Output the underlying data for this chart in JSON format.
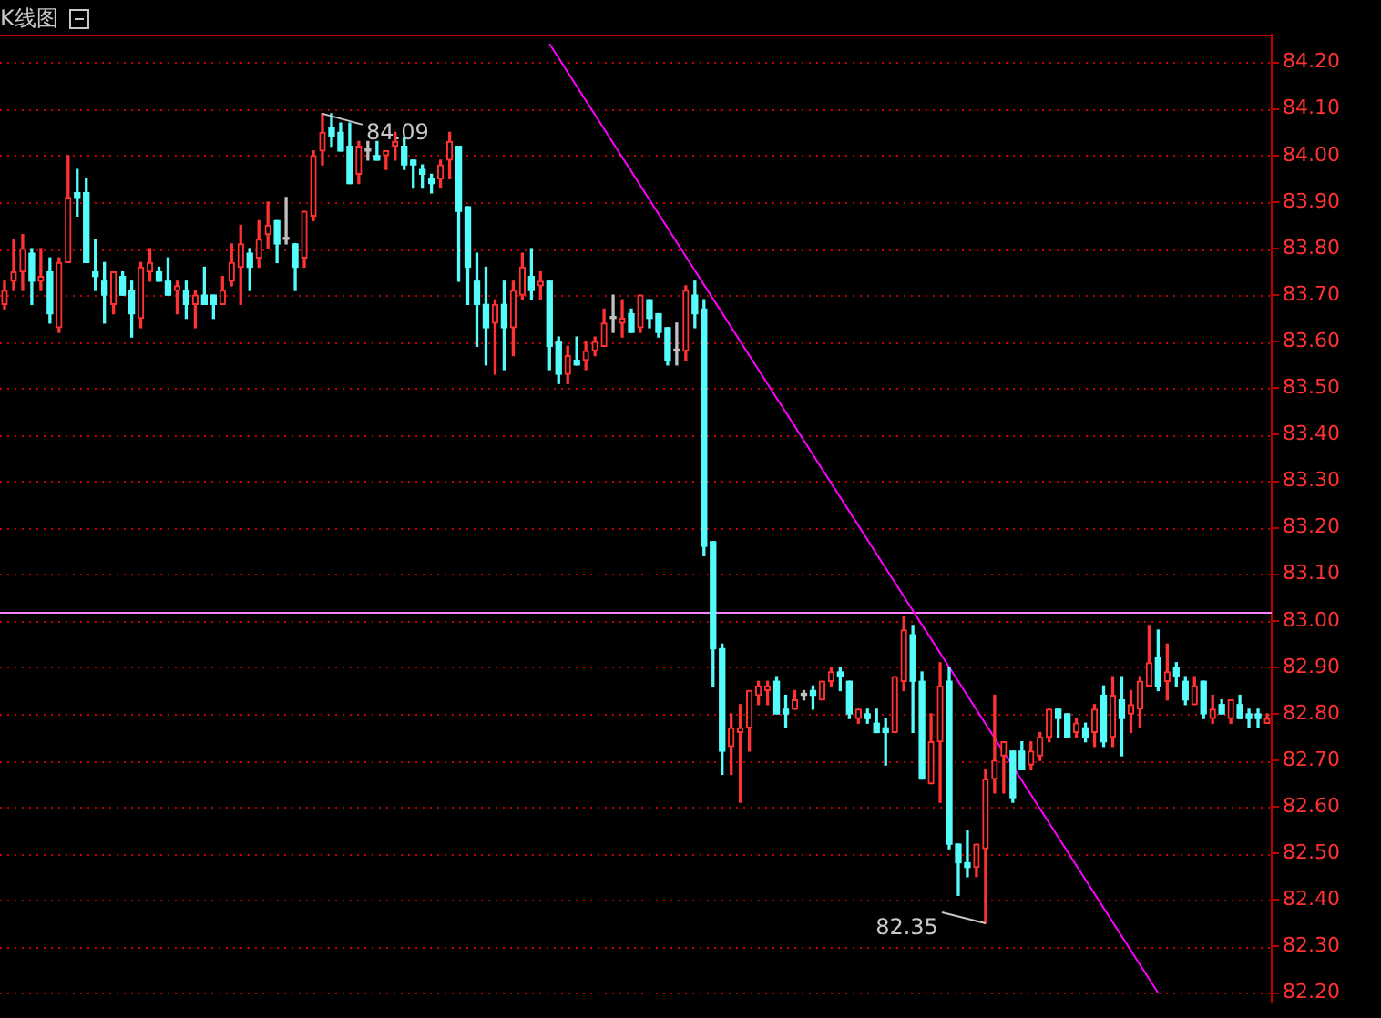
{
  "chart_data": {
    "type": "candlestick",
    "title": "K线图",
    "categories": [
      null,
      null,
      null,
      null,
      null,
      null,
      null,
      null,
      null,
      null,
      null,
      null,
      null,
      null,
      null,
      null,
      null,
      null,
      null,
      null,
      null,
      null,
      null,
      null,
      null,
      null,
      null,
      null,
      null,
      null,
      null,
      null,
      null,
      null,
      null,
      null,
      null,
      null,
      null,
      null,
      null,
      null,
      null,
      null,
      null,
      null,
      null,
      null,
      null,
      null,
      null,
      null,
      null,
      null,
      null,
      null,
      null,
      null,
      null,
      null,
      null,
      null,
      null,
      null,
      null,
      null,
      null,
      null,
      null,
      null,
      null,
      null,
      null,
      null,
      null,
      null,
      null,
      null,
      null,
      null,
      null,
      null,
      null,
      null,
      null,
      null,
      null,
      null,
      null,
      null,
      null,
      null,
      null,
      null,
      null,
      null,
      null,
      null,
      null,
      null,
      null,
      null,
      null,
      null,
      null,
      null,
      null,
      null,
      null,
      null,
      null,
      null,
      null,
      null,
      null,
      null,
      null,
      null,
      null,
      null,
      null,
      null,
      null,
      null,
      null,
      null,
      null,
      null,
      null,
      null,
      null,
      null,
      null,
      null,
      null,
      null,
      null,
      null,
      null,
      null
    ],
    "ohlc": [
      [
        83.68,
        83.73,
        83.67,
        83.71
      ],
      [
        83.73,
        83.82,
        83.71,
        83.75
      ],
      [
        83.75,
        83.83,
        83.71,
        83.8
      ],
      [
        83.79,
        83.8,
        83.68,
        83.73
      ],
      [
        83.73,
        83.8,
        83.71,
        83.74
      ],
      [
        83.75,
        83.78,
        83.64,
        83.66
      ],
      [
        83.63,
        83.78,
        83.62,
        83.77
      ],
      [
        83.77,
        84.0,
        83.77,
        83.91
      ],
      [
        83.92,
        83.97,
        83.87,
        83.91
      ],
      [
        83.92,
        83.95,
        83.77,
        83.77
      ],
      [
        83.75,
        83.82,
        83.71,
        83.74
      ],
      [
        83.73,
        83.77,
        83.64,
        83.7
      ],
      [
        83.68,
        83.75,
        83.66,
        83.75
      ],
      [
        83.74,
        83.75,
        83.7,
        83.7
      ],
      [
        83.71,
        83.73,
        83.61,
        83.66
      ],
      [
        83.65,
        83.77,
        83.63,
        83.76
      ],
      [
        83.75,
        83.8,
        83.73,
        83.77
      ],
      [
        83.75,
        83.76,
        83.73,
        83.73
      ],
      [
        83.73,
        83.78,
        83.7,
        83.7
      ],
      [
        83.71,
        83.73,
        83.66,
        83.72
      ],
      [
        83.71,
        83.73,
        83.65,
        83.68
      ],
      [
        83.68,
        83.71,
        83.63,
        83.7
      ],
      [
        83.7,
        83.76,
        83.68,
        83.68
      ],
      [
        83.7,
        83.7,
        83.65,
        83.68
      ],
      [
        83.68,
        83.74,
        83.68,
        83.71
      ],
      [
        83.73,
        83.81,
        83.72,
        83.77
      ],
      [
        83.76,
        83.85,
        83.68,
        83.81
      ],
      [
        83.79,
        83.8,
        83.71,
        83.76
      ],
      [
        83.78,
        83.86,
        83.76,
        83.82
      ],
      [
        83.83,
        83.9,
        83.8,
        83.85
      ],
      [
        83.86,
        83.86,
        83.77,
        83.81
      ],
      [
        83.82,
        83.91,
        83.81,
        83.82
      ],
      [
        83.81,
        83.81,
        83.71,
        83.76
      ],
      [
        83.78,
        83.88,
        83.76,
        83.88
      ],
      [
        83.87,
        84.01,
        83.86,
        84.0
      ],
      [
        84.01,
        84.09,
        83.98,
        84.05
      ],
      [
        84.06,
        84.09,
        84.02,
        84.04
      ],
      [
        84.05,
        84.07,
        84.01,
        84.01
      ],
      [
        84.02,
        84.07,
        83.94,
        83.94
      ],
      [
        83.96,
        84.03,
        83.94,
        84.02
      ],
      [
        84.01,
        84.03,
        83.99,
        84.01
      ],
      [
        84.0,
        84.03,
        83.99,
        83.99
      ],
      [
        84.0,
        84.01,
        83.97,
        84.01
      ],
      [
        84.02,
        84.05,
        83.99,
        84.03
      ],
      [
        84.02,
        84.04,
        83.97,
        83.98
      ],
      [
        83.99,
        83.99,
        83.93,
        83.98
      ],
      [
        83.97,
        83.98,
        83.93,
        83.96
      ],
      [
        83.95,
        83.96,
        83.92,
        83.94
      ],
      [
        83.95,
        83.99,
        83.93,
        83.98
      ],
      [
        83.99,
        84.05,
        83.95,
        84.03
      ],
      [
        84.02,
        84.02,
        83.73,
        83.88
      ],
      [
        83.89,
        83.89,
        83.68,
        83.76
      ],
      [
        83.73,
        83.79,
        83.59,
        83.68
      ],
      [
        83.68,
        83.76,
        83.55,
        83.63
      ],
      [
        83.64,
        83.69,
        83.53,
        83.68
      ],
      [
        83.68,
        83.73,
        83.54,
        83.63
      ],
      [
        83.63,
        83.73,
        83.57,
        83.71
      ],
      [
        83.7,
        83.79,
        83.69,
        83.76
      ],
      [
        83.74,
        83.8,
        83.69,
        83.71
      ],
      [
        83.72,
        83.75,
        83.69,
        83.73
      ],
      [
        83.73,
        83.73,
        83.54,
        83.59
      ],
      [
        83.6,
        83.61,
        83.51,
        83.53
      ],
      [
        83.53,
        83.59,
        83.51,
        83.57
      ],
      [
        83.56,
        83.61,
        83.55,
        83.55
      ],
      [
        83.56,
        83.6,
        83.54,
        83.58
      ],
      [
        83.58,
        83.61,
        83.57,
        83.6
      ],
      [
        83.59,
        83.67,
        83.59,
        83.64
      ],
      [
        83.65,
        83.7,
        83.62,
        83.65
      ],
      [
        83.64,
        83.69,
        83.61,
        83.65
      ],
      [
        83.66,
        83.67,
        83.62,
        83.62
      ],
      [
        83.63,
        83.7,
        83.62,
        83.7
      ],
      [
        83.69,
        83.69,
        83.63,
        83.65
      ],
      [
        83.66,
        83.66,
        83.61,
        83.62
      ],
      [
        83.63,
        83.63,
        83.55,
        83.56
      ],
      [
        83.58,
        83.64,
        83.55,
        83.58
      ],
      [
        83.58,
        83.72,
        83.56,
        83.71
      ],
      [
        83.7,
        83.73,
        83.63,
        83.66
      ],
      [
        83.67,
        83.69,
        83.14,
        83.16
      ],
      [
        83.17,
        83.17,
        82.86,
        82.94
      ],
      [
        82.94,
        82.95,
        82.67,
        82.72
      ],
      [
        82.73,
        82.8,
        82.67,
        82.77
      ],
      [
        82.76,
        82.82,
        82.61,
        82.77
      ],
      [
        82.77,
        82.85,
        82.72,
        82.85
      ],
      [
        82.84,
        82.87,
        82.82,
        82.86
      ],
      [
        82.85,
        82.87,
        82.82,
        82.86
      ],
      [
        82.87,
        82.88,
        82.8,
        82.8
      ],
      [
        82.81,
        82.84,
        82.77,
        82.8
      ],
      [
        82.81,
        82.85,
        82.81,
        82.83
      ],
      [
        82.84,
        82.85,
        82.83,
        82.84
      ],
      [
        82.85,
        82.86,
        82.81,
        82.84
      ],
      [
        82.83,
        82.87,
        82.83,
        82.87
      ],
      [
        82.87,
        82.9,
        82.86,
        82.89
      ],
      [
        82.89,
        82.9,
        82.85,
        82.88
      ],
      [
        82.87,
        82.87,
        82.79,
        82.8
      ],
      [
        82.79,
        82.81,
        82.78,
        82.81
      ],
      [
        82.8,
        82.81,
        82.78,
        82.79
      ],
      [
        82.78,
        82.81,
        82.76,
        82.76
      ],
      [
        82.77,
        82.79,
        82.69,
        82.76
      ],
      [
        82.76,
        82.88,
        82.76,
        82.88
      ],
      [
        82.87,
        83.01,
        82.85,
        82.98
      ],
      [
        82.97,
        82.99,
        82.76,
        82.87
      ],
      [
        82.87,
        82.89,
        82.66,
        82.66
      ],
      [
        82.65,
        82.8,
        82.65,
        82.74
      ],
      [
        82.74,
        82.91,
        82.61,
        82.86
      ],
      [
        82.87,
        82.9,
        82.51,
        82.52
      ],
      [
        82.52,
        82.52,
        82.41,
        82.48
      ],
      [
        82.48,
        82.55,
        82.45,
        82.47
      ],
      [
        82.47,
        82.52,
        82.45,
        82.52
      ],
      [
        82.51,
        82.68,
        82.35,
        82.66
      ],
      [
        82.66,
        82.84,
        82.63,
        82.7
      ],
      [
        82.71,
        82.74,
        82.63,
        82.74
      ],
      [
        82.72,
        82.72,
        82.61,
        82.62
      ],
      [
        82.72,
        82.74,
        82.68,
        82.68
      ],
      [
        82.69,
        82.74,
        82.68,
        82.72
      ],
      [
        82.71,
        82.76,
        82.7,
        82.75
      ],
      [
        82.75,
        82.81,
        82.74,
        82.81
      ],
      [
        82.81,
        82.81,
        82.75,
        82.79
      ],
      [
        82.8,
        82.8,
        82.75,
        82.75
      ],
      [
        82.76,
        82.79,
        82.75,
        82.78
      ],
      [
        82.77,
        82.78,
        82.74,
        82.75
      ],
      [
        82.76,
        82.82,
        82.73,
        82.81
      ],
      [
        82.84,
        82.86,
        82.73,
        82.74
      ],
      [
        82.75,
        82.88,
        82.73,
        82.84
      ],
      [
        82.83,
        82.88,
        82.71,
        82.79
      ],
      [
        82.8,
        82.85,
        82.76,
        82.82
      ],
      [
        82.81,
        82.88,
        82.77,
        82.87
      ],
      [
        82.86,
        82.99,
        82.86,
        82.91
      ],
      [
        82.92,
        82.98,
        82.85,
        82.86
      ],
      [
        82.87,
        82.95,
        82.83,
        82.89
      ],
      [
        82.9,
        82.91,
        82.86,
        82.88
      ],
      [
        82.87,
        82.88,
        82.82,
        82.83
      ],
      [
        82.82,
        82.88,
        82.82,
        82.86
      ],
      [
        82.87,
        82.87,
        82.79,
        82.8
      ],
      [
        82.79,
        82.84,
        82.78,
        82.81
      ],
      [
        82.82,
        82.83,
        82.8,
        82.8
      ],
      [
        82.79,
        82.83,
        82.78,
        82.83
      ],
      [
        82.82,
        82.84,
        82.79,
        82.79
      ],
      [
        82.8,
        82.81,
        82.77,
        82.79
      ],
      [
        82.8,
        82.81,
        82.77,
        82.79
      ],
      [
        82.78,
        82.8,
        82.78,
        82.79
      ]
    ],
    "colors": [
      "#ff3232",
      "#ff3232",
      "#ff3232",
      "#54fcfc",
      "#ff3232",
      "#54fcfc",
      "#ff3232",
      "#ff3232",
      "#54fcfc",
      "#54fcfc",
      "#54fcfc",
      "#54fcfc",
      "#ff3232",
      "#54fcfc",
      "#54fcfc",
      "#ff3232",
      "#ff3232",
      "#54fcfc",
      "#54fcfc",
      "#ff3232",
      "#54fcfc",
      "#ff3232",
      "#54fcfc",
      "#54fcfc",
      "#ff3232",
      "#ff3232",
      "#ff3232",
      "#54fcfc",
      "#ff3232",
      "#ff3232",
      "#54fcfc",
      "#c0c0c0",
      "#54fcfc",
      "#ff3232",
      "#ff3232",
      "#ff3232",
      "#54fcfc",
      "#54fcfc",
      "#54fcfc",
      "#ff3232",
      "#c0c0c0",
      "#54fcfc",
      "#ff3232",
      "#ff3232",
      "#54fcfc",
      "#54fcfc",
      "#54fcfc",
      "#54fcfc",
      "#ff3232",
      "#ff3232",
      "#54fcfc",
      "#54fcfc",
      "#54fcfc",
      "#54fcfc",
      "#ff3232",
      "#54fcfc",
      "#ff3232",
      "#ff3232",
      "#54fcfc",
      "#ff3232",
      "#54fcfc",
      "#54fcfc",
      "#ff3232",
      "#54fcfc",
      "#ff3232",
      "#ff3232",
      "#ff3232",
      "#c0c0c0",
      "#ff3232",
      "#54fcfc",
      "#ff3232",
      "#54fcfc",
      "#54fcfc",
      "#54fcfc",
      "#c0c0c0",
      "#ff3232",
      "#54fcfc",
      "#54fcfc",
      "#54fcfc",
      "#54fcfc",
      "#ff3232",
      "#ff3232",
      "#ff3232",
      "#ff3232",
      "#ff3232",
      "#54fcfc",
      "#54fcfc",
      "#ff3232",
      "#c0c0c0",
      "#54fcfc",
      "#ff3232",
      "#ff3232",
      "#54fcfc",
      "#54fcfc",
      "#ff3232",
      "#54fcfc",
      "#54fcfc",
      "#54fcfc",
      "#ff3232",
      "#ff3232",
      "#54fcfc",
      "#54fcfc",
      "#ff3232",
      "#ff3232",
      "#54fcfc",
      "#54fcfc",
      "#54fcfc",
      "#ff3232",
      "#ff3232",
      "#ff3232",
      "#ff3232",
      "#54fcfc",
      "#54fcfc",
      "#ff3232",
      "#ff3232",
      "#ff3232",
      "#54fcfc",
      "#54fcfc",
      "#ff3232",
      "#54fcfc",
      "#ff3232",
      "#54fcfc",
      "#ff3232",
      "#54fcfc",
      "#ff3232",
      "#ff3232",
      "#ff3232",
      "#54fcfc",
      "#ff3232",
      "#54fcfc",
      "#54fcfc",
      "#ff3232",
      "#54fcfc",
      "#ff3232",
      "#54fcfc",
      "#ff3232",
      "#54fcfc",
      "#54fcfc",
      "#54fcfc",
      "#ff3232"
    ],
    "series": [
      {
        "type": "line",
        "color": "#ff00ff",
        "values": [
          null,
          null,
          null,
          null,
          null,
          null,
          null,
          null,
          null,
          null,
          null,
          null,
          null,
          null,
          null,
          null,
          null,
          null,
          null,
          null,
          null,
          null,
          null,
          null,
          null,
          null,
          null,
          null,
          null,
          null,
          null,
          null,
          null,
          null,
          null,
          null,
          null,
          null,
          null,
          null,
          null,
          null,
          null,
          null,
          null,
          null,
          null,
          null,
          null,
          null,
          null,
          null,
          null,
          null,
          null,
          null,
          null,
          null,
          null,
          null,
          84.24,
          null,
          null,
          null,
          null,
          null,
          null,
          null,
          null,
          null,
          null,
          null,
          null,
          null,
          null,
          null,
          null,
          null,
          null,
          null,
          null,
          null,
          null,
          null,
          null,
          null,
          null,
          null,
          null,
          null,
          null,
          null,
          null,
          null,
          null,
          null,
          null,
          null,
          null,
          null,
          null,
          null,
          null,
          null,
          null,
          null,
          null,
          null,
          null,
          null,
          null,
          null,
          null,
          null,
          null,
          null,
          null,
          null,
          null,
          null,
          null,
          null,
          null,
          null,
          null,
          null,
          null,
          82.2,
          null,
          null,
          null,
          null,
          null,
          null,
          null,
          null,
          null,
          null,
          null,
          null
        ],
        "line_style": "solid"
      }
    ],
    "ylim": [
      82.18,
      84.26
    ],
    "yticks": [
      {
        "value": 82.2,
        "label": "82.20"
      },
      {
        "value": 82.3,
        "label": "82.30"
      },
      {
        "value": 82.4,
        "label": "82.40"
      },
      {
        "value": 82.5,
        "label": "82.50"
      },
      {
        "value": 82.6,
        "label": "82.60"
      },
      {
        "value": 82.7,
        "label": "82.70"
      },
      {
        "value": 82.8,
        "label": "82.80"
      },
      {
        "value": 82.9,
        "label": "82.90"
      },
      {
        "value": 83.0,
        "label": "83.00"
      },
      {
        "value": 83.1,
        "label": "83.10"
      },
      {
        "value": 83.2,
        "label": "83.20"
      },
      {
        "value": 83.3,
        "label": "83.30"
      },
      {
        "value": 83.4,
        "label": "83.40"
      },
      {
        "value": 83.5,
        "label": "83.50"
      },
      {
        "value": 83.6,
        "label": "83.60"
      },
      {
        "value": 83.7,
        "label": "83.70"
      },
      {
        "value": 83.8,
        "label": "83.80"
      },
      {
        "value": 83.9,
        "label": "83.90"
      },
      {
        "value": 84.0,
        "label": "84.00"
      },
      {
        "value": 84.1,
        "label": "84.10"
      },
      {
        "value": 84.2,
        "label": "84.20"
      }
    ],
    "grid": "y",
    "tick_labels": "y",
    "legend": false,
    "ref_lines": [
      {
        "axis": "y",
        "value": 83.02,
        "color": "#ff80ff"
      }
    ],
    "annotations": [
      "84.09",
      "82.35"
    ]
  }
}
